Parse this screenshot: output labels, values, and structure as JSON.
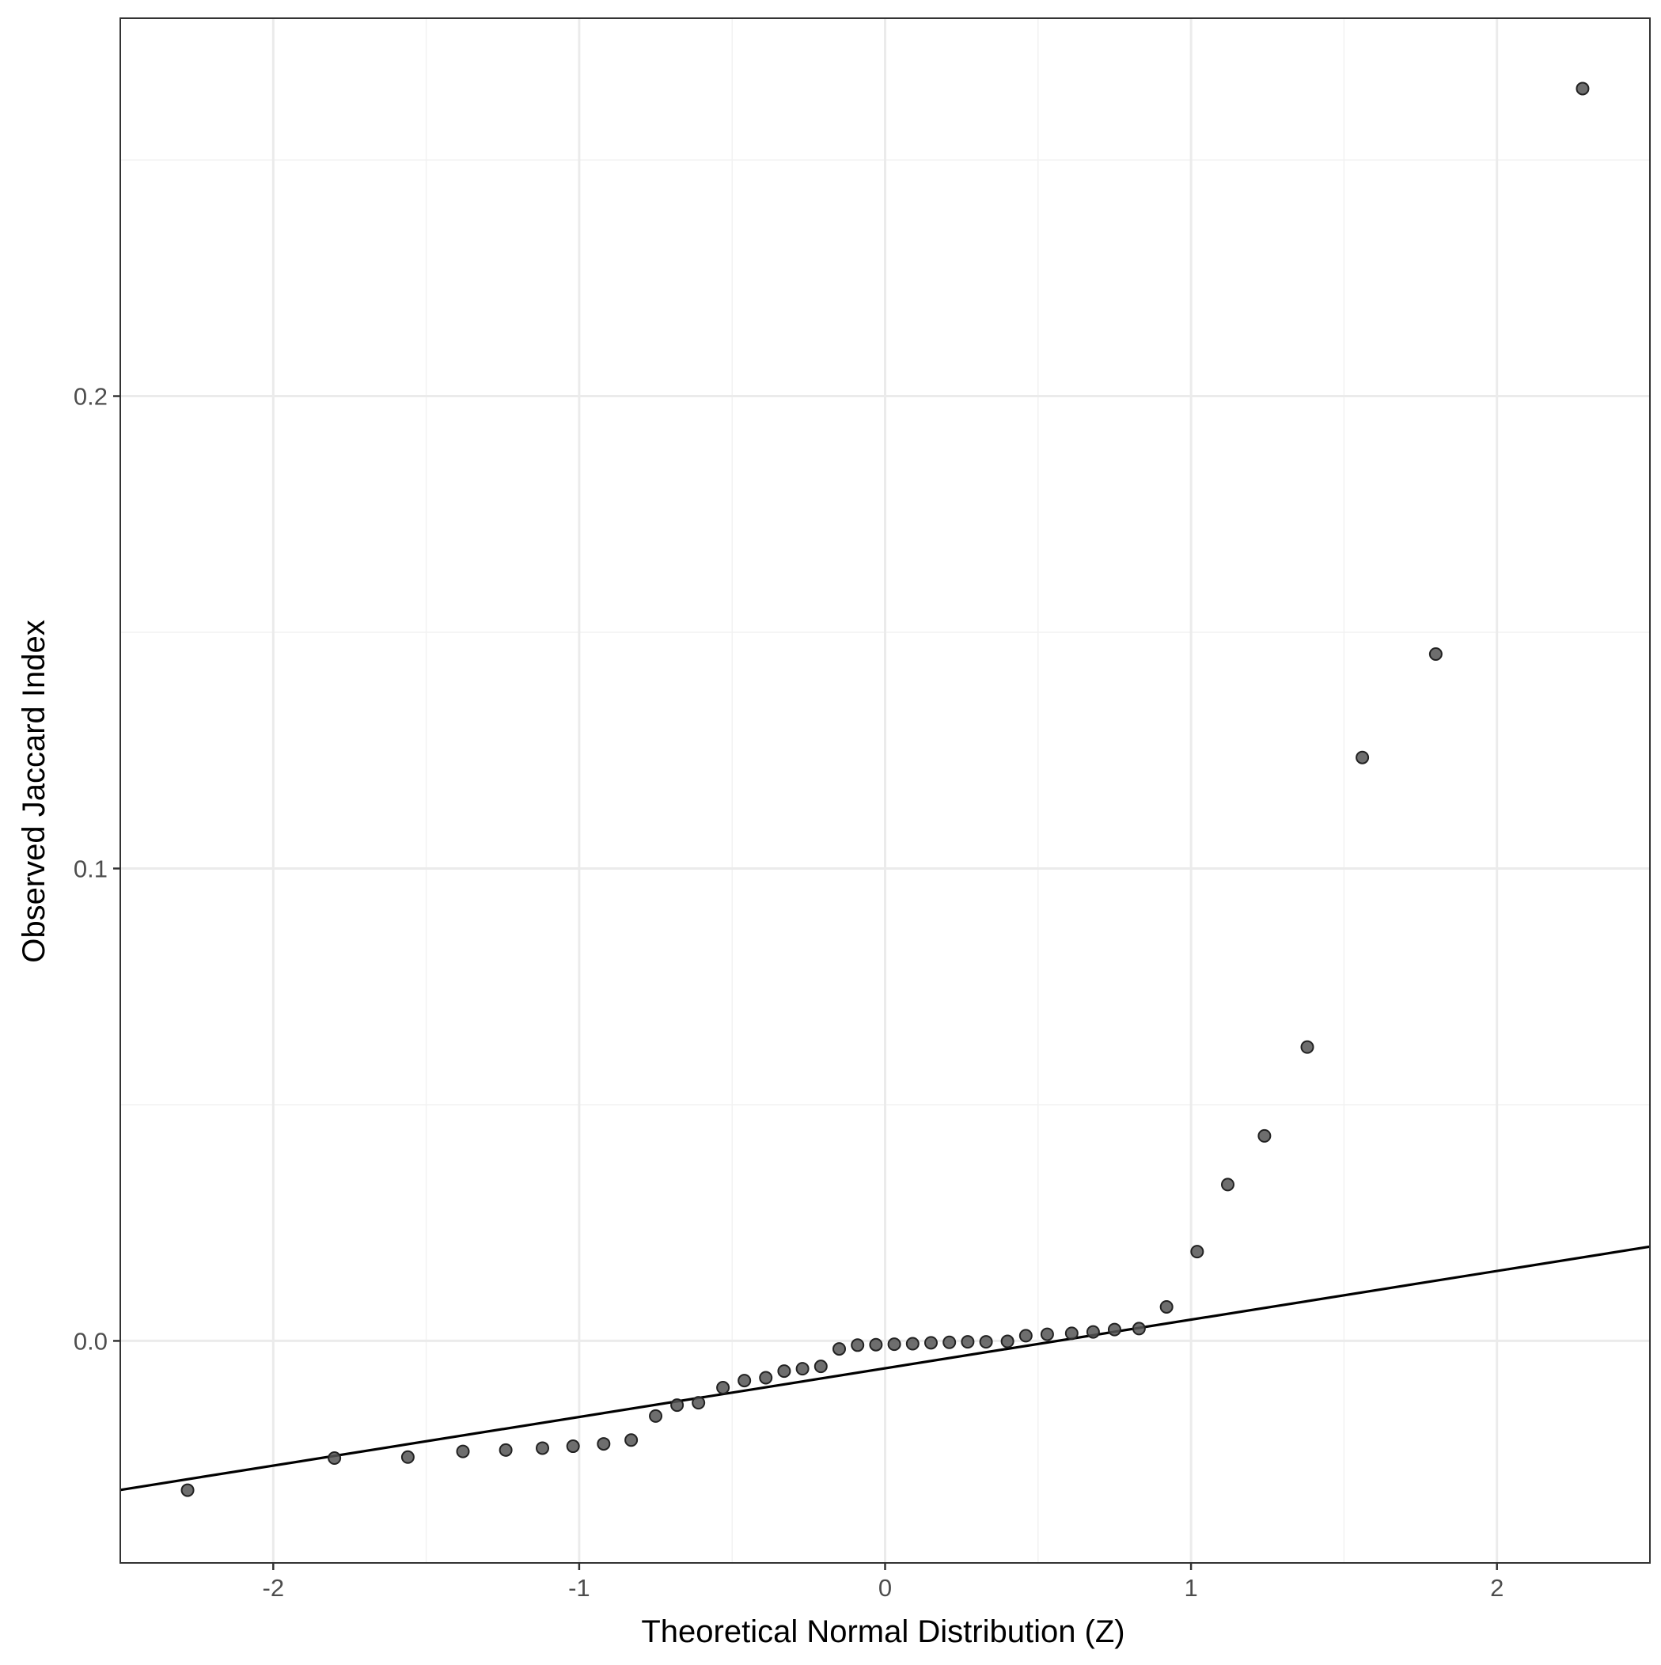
{
  "chart_data": {
    "type": "scatter",
    "title": "",
    "xlabel": "Theoretical Normal Distribution (Z)",
    "ylabel": "Observed Jaccard Index",
    "xlim": [
      -2.5,
      2.5
    ],
    "ylim": [
      -0.047,
      0.28
    ],
    "x_ticks": [
      -2,
      -1,
      0,
      1,
      2
    ],
    "x_tick_labels": [
      "-2",
      "-1",
      "0",
      "1",
      "2"
    ],
    "y_ticks": [
      0.0,
      0.1,
      0.2
    ],
    "y_tick_labels": [
      "0.0",
      "0.1",
      "0.2"
    ],
    "grid": true,
    "reference_line": {
      "intercept": -0.0058,
      "slope": 0.0103
    },
    "points": [
      {
        "x": -2.28,
        "y": -0.0316
      },
      {
        "x": -1.8,
        "y": -0.0248
      },
      {
        "x": -1.56,
        "y": -0.0246
      },
      {
        "x": -1.38,
        "y": -0.0234
      },
      {
        "x": -1.24,
        "y": -0.0231
      },
      {
        "x": -1.12,
        "y": -0.0227
      },
      {
        "x": -1.02,
        "y": -0.0223
      },
      {
        "x": -0.92,
        "y": -0.0218
      },
      {
        "x": -0.83,
        "y": -0.021
      },
      {
        "x": -0.75,
        "y": -0.0159
      },
      {
        "x": -0.68,
        "y": -0.0136
      },
      {
        "x": -0.61,
        "y": -0.0131
      },
      {
        "x": -0.53,
        "y": -0.0099
      },
      {
        "x": -0.46,
        "y": -0.0084
      },
      {
        "x": -0.39,
        "y": -0.0078
      },
      {
        "x": -0.33,
        "y": -0.0064
      },
      {
        "x": -0.27,
        "y": -0.0059
      },
      {
        "x": -0.21,
        "y": -0.0054
      },
      {
        "x": -0.15,
        "y": -0.0017
      },
      {
        "x": -0.09,
        "y": -0.0009
      },
      {
        "x": -0.03,
        "y": -0.0008
      },
      {
        "x": 0.03,
        "y": -0.0007
      },
      {
        "x": 0.09,
        "y": -0.0006
      },
      {
        "x": 0.15,
        "y": -0.0004
      },
      {
        "x": 0.21,
        "y": -0.0003
      },
      {
        "x": 0.27,
        "y": -0.0002
      },
      {
        "x": 0.33,
        "y": -0.0002
      },
      {
        "x": 0.4,
        "y": -0.0001
      },
      {
        "x": 0.46,
        "y": 0.0011
      },
      {
        "x": 0.53,
        "y": 0.0014
      },
      {
        "x": 0.61,
        "y": 0.0016
      },
      {
        "x": 0.68,
        "y": 0.0019
      },
      {
        "x": 0.75,
        "y": 0.0024
      },
      {
        "x": 0.83,
        "y": 0.0026
      },
      {
        "x": 0.92,
        "y": 0.0072
      },
      {
        "x": 1.02,
        "y": 0.0189
      },
      {
        "x": 1.12,
        "y": 0.0331
      },
      {
        "x": 1.24,
        "y": 0.0434
      },
      {
        "x": 1.38,
        "y": 0.0622
      },
      {
        "x": 1.56,
        "y": 0.1235
      },
      {
        "x": 1.8,
        "y": 0.1454
      },
      {
        "x": 2.28,
        "y": 0.2651
      }
    ],
    "point_color": "#555555",
    "point_stroke": "#222222",
    "line_color": "#000000",
    "grid_major_color": "#ebebeb",
    "grid_minor_color": "#f2f2f2",
    "panel_border_color": "#333333"
  }
}
